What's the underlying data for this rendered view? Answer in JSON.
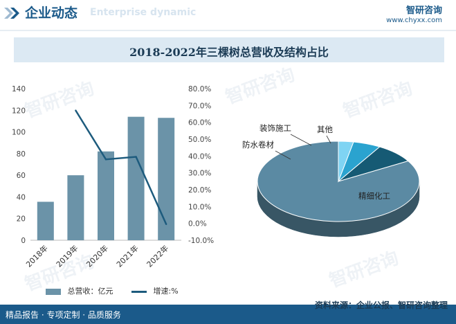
{
  "header": {
    "title": "企业动态",
    "subtitle": "Enterprise dynamic",
    "logo": "智研咨询",
    "logo_url": "www.chyxx.com"
  },
  "banner": {
    "title": "2018-2022年三棵树总营收及结构占比"
  },
  "footer": {
    "left": "精品报告 · 专项定制 · 品质服务",
    "source": "资料来源：企业公报、智研咨询整理"
  },
  "watermark": "智研咨询",
  "colors": {
    "bar": "#6b93a8",
    "line": "#1d5b7d",
    "accent": "#1b5a8a"
  },
  "chart_data": [
    {
      "type": "bar",
      "categories": [
        "2018年",
        "2019年",
        "2020年",
        "2021年",
        "2022年"
      ],
      "series": [
        {
          "name": "总营收：亿元",
          "type": "bar",
          "axis": "left",
          "values": [
            35.5,
            60,
            82,
            114,
            113
          ]
        },
        {
          "name": "增速:%",
          "type": "line",
          "axis": "right",
          "values": [
            null,
            67.0,
            38.0,
            39.5,
            -0.5
          ]
        }
      ],
      "y_left_ticks": [
        "0",
        "20",
        "40",
        "60",
        "80",
        "100",
        "120",
        "140"
      ],
      "y_left_lim": [
        0,
        140
      ],
      "y_right_ticks": [
        "-10.0%",
        "0.0%",
        "10.0%",
        "20.0%",
        "30.0%",
        "40.0%",
        "50.0%",
        "60.0%",
        "70.0%",
        "80.0%"
      ],
      "y_right_lim": [
        -10,
        80
      ],
      "legend_position": "bottom"
    },
    {
      "type": "pie",
      "style": "3d",
      "slices": [
        {
          "label": "精细化工",
          "value": 83.5,
          "color": "#5b8aa3"
        },
        {
          "label": "防水卷材",
          "value": 8.0,
          "color": "#165a74"
        },
        {
          "label": "装饰施工",
          "value": 5.5,
          "color": "#2aa3cf"
        },
        {
          "label": "其他",
          "value": 3.0,
          "color": "#7fd4f3"
        }
      ]
    }
  ]
}
